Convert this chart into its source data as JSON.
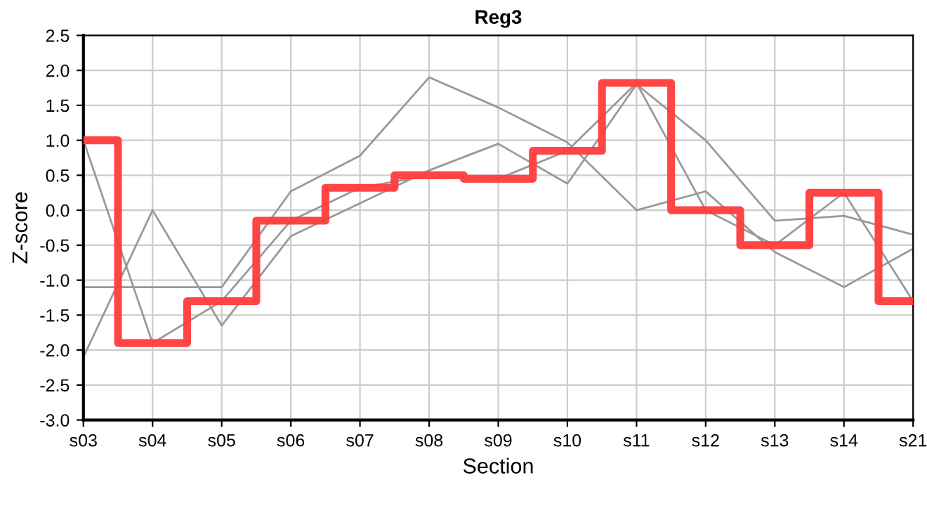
{
  "chart_data": {
    "type": "line",
    "title": "Reg3",
    "xlabel": "Section",
    "ylabel": "Z-score",
    "categories": [
      "s03",
      "s04",
      "s05",
      "s06",
      "s07",
      "s08",
      "s09",
      "s10",
      "s11",
      "s12",
      "s13",
      "s14",
      "s21"
    ],
    "series": [
      {
        "color": "#999999",
        "values": [
          1.0,
          -1.9,
          -1.3,
          -0.15,
          0.32,
          0.5,
          0.45,
          0.85,
          1.82,
          0.0,
          -0.5,
          0.25,
          -1.3
        ]
      },
      {
        "color": "#999999",
        "values": [
          -2.1,
          0.0,
          -1.65,
          -0.37,
          0.1,
          0.57,
          0.95,
          0.38,
          1.8,
          1.0,
          -0.15,
          -0.08,
          -0.35
        ]
      },
      {
        "color": "#999999",
        "values": [
          -1.1,
          -1.1,
          -1.1,
          0.27,
          0.78,
          1.9,
          1.47,
          0.97,
          0.0,
          0.27,
          -0.6,
          -1.1,
          -0.55
        ]
      },
      {
        "type": "step",
        "color": "#ff3b3b",
        "values": [
          1.0,
          -1.9,
          -1.3,
          -0.15,
          0.32,
          0.5,
          0.45,
          0.85,
          1.82,
          0.0,
          -0.5,
          0.25,
          -1.3
        ]
      }
    ],
    "ylim": [
      -3.0,
      2.5
    ],
    "yticks": [
      {
        "value": -3.0,
        "label": "-3.0"
      },
      {
        "value": -2.5,
        "label": "-2.5"
      },
      {
        "value": -2.0,
        "label": "-2.0"
      },
      {
        "value": -1.5,
        "label": "-1.5"
      },
      {
        "value": -1.0,
        "label": "-1.0"
      },
      {
        "value": -0.5,
        "label": "-0.5"
      },
      {
        "value": 0.0,
        "label": "0.0"
      },
      {
        "value": 0.5,
        "label": "0.5"
      },
      {
        "value": 1.0,
        "label": "1.0"
      },
      {
        "value": 1.5,
        "label": "1.5"
      },
      {
        "value": 2.0,
        "label": "2.0"
      },
      {
        "value": 2.5,
        "label": "2.5"
      }
    ],
    "grid": true
  }
}
